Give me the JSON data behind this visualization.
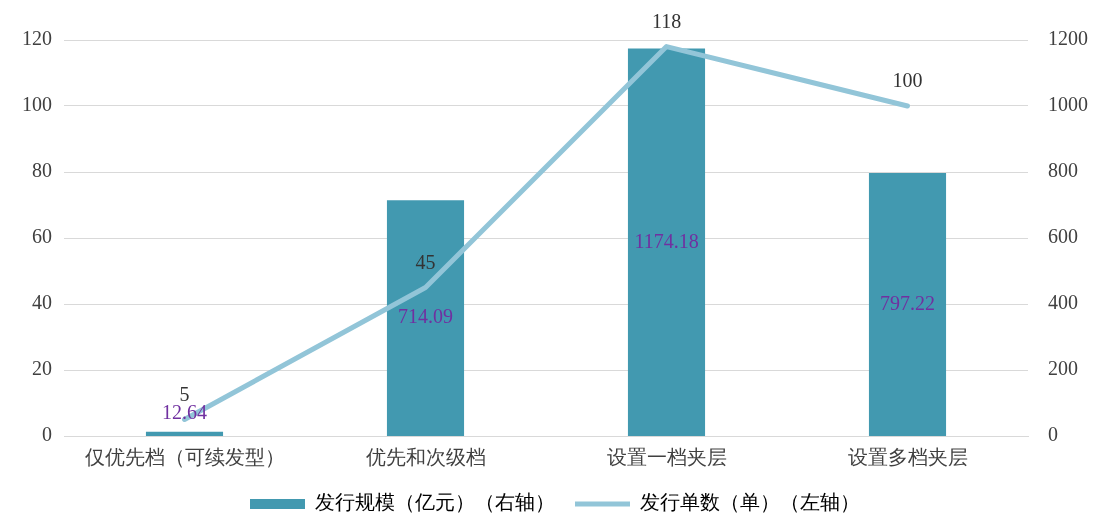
{
  "chart_data": {
    "type": "bar",
    "categories": [
      "仅优先档（可续发型）",
      "优先和次级档",
      "设置一档夹层",
      "设置多档夹层"
    ],
    "series": [
      {
        "name": "发行规模（亿元）（右轴）",
        "axis": "y2",
        "color": "#4299b0",
        "values": [
          12.64,
          714.09,
          1174.18,
          797.22
        ]
      },
      {
        "name": "发行单数（单）（左轴）",
        "type": "line",
        "color": "#92c5d8",
        "values": [
          5,
          45,
          118,
          100
        ]
      }
    ],
    "ylim": [
      0,
      120
    ],
    "yticks": [
      0,
      20,
      40,
      60,
      80,
      100,
      120
    ],
    "y2lim": [
      0,
      1200
    ],
    "y2ticks": [
      0,
      200,
      400,
      600,
      800,
      1000,
      1200
    ],
    "grid": "y",
    "legend": "bottom",
    "data_labels": true,
    "marker": "none",
    "line_style": "solid"
  }
}
